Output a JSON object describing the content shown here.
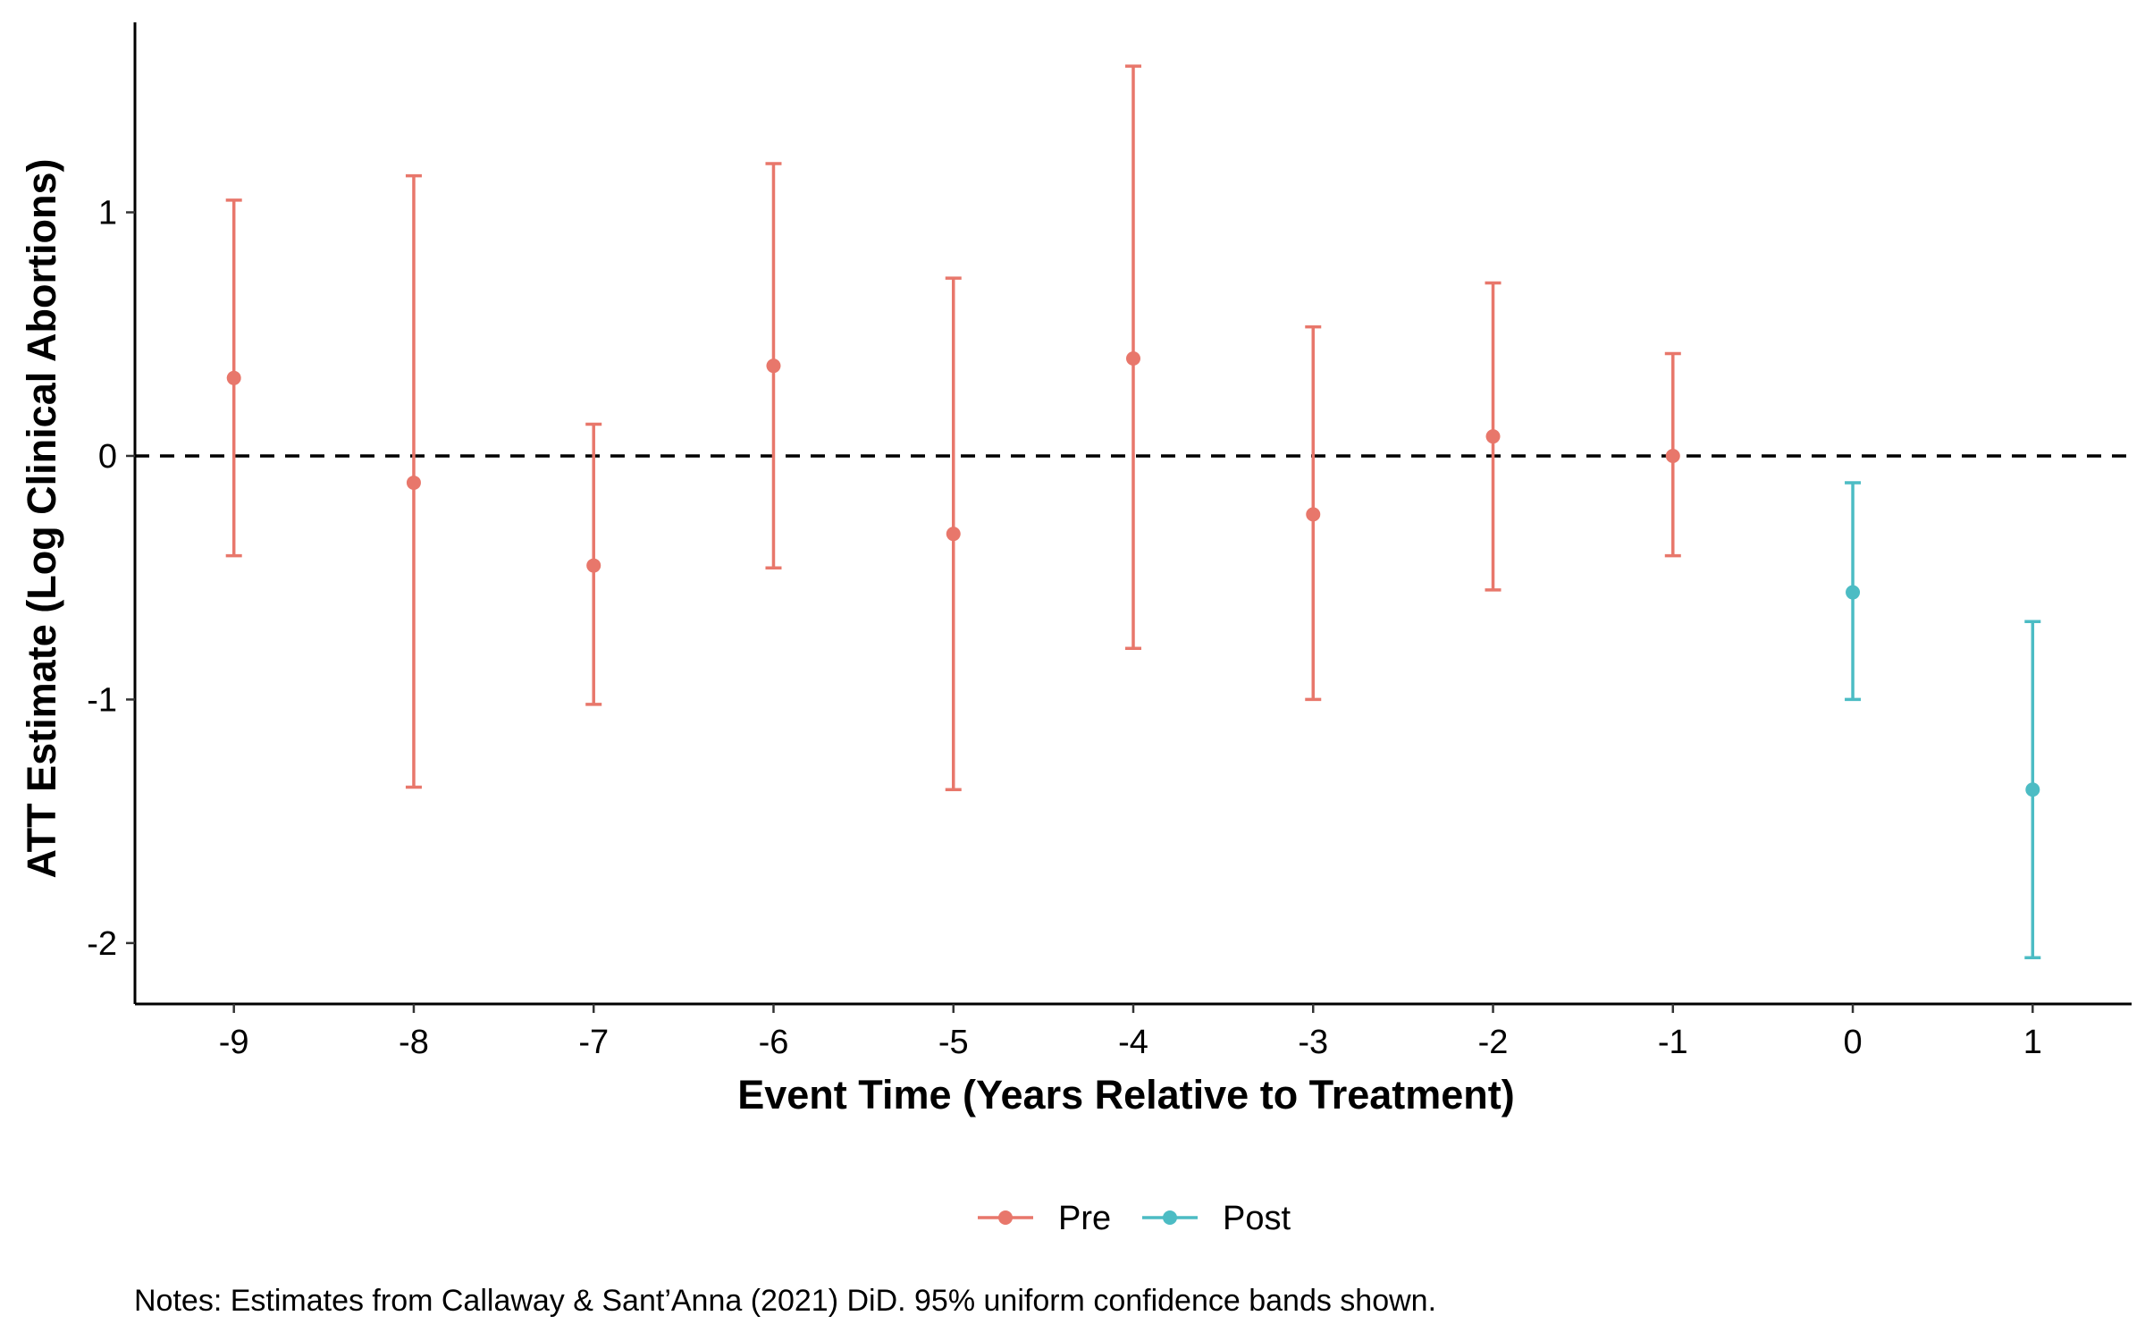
{
  "chart_data": {
    "type": "scatter",
    "xlabel": "Event Time (Years Relative to Treatment)",
    "ylabel": "ATT Estimate (Log Clinical Abortions)",
    "x_ticks": [
      -9,
      -8,
      -7,
      -6,
      -5,
      -4,
      -3,
      -2,
      -1,
      0,
      1
    ],
    "y_ticks": [
      -2,
      -1,
      0,
      1
    ],
    "xlim": [
      -9.55,
      1.55
    ],
    "ylim": [
      -2.25,
      1.78
    ],
    "grid": false,
    "reference_line": {
      "y": 0,
      "style": "dashed",
      "color": "#000000"
    },
    "legend_position": "bottom",
    "series": [
      {
        "name": "Pre",
        "color": "#E8776B",
        "points": [
          {
            "x": -9,
            "y": 0.32,
            "lower": -0.41,
            "upper": 1.05
          },
          {
            "x": -8,
            "y": -0.11,
            "lower": -1.36,
            "upper": 1.15
          },
          {
            "x": -7,
            "y": -0.45,
            "lower": -1.02,
            "upper": 0.13
          },
          {
            "x": -6,
            "y": 0.37,
            "lower": -0.46,
            "upper": 1.2
          },
          {
            "x": -5,
            "y": -0.32,
            "lower": -1.37,
            "upper": 0.73
          },
          {
            "x": -4,
            "y": 0.4,
            "lower": -0.79,
            "upper": 1.6
          },
          {
            "x": -3,
            "y": -0.24,
            "lower": -1.0,
            "upper": 0.53
          },
          {
            "x": -2,
            "y": 0.08,
            "lower": -0.55,
            "upper": 0.71
          },
          {
            "x": -1,
            "y": 0.0,
            "lower": -0.41,
            "upper": 0.42
          }
        ]
      },
      {
        "name": "Post",
        "color": "#4CBCC4",
        "points": [
          {
            "x": 0,
            "y": -0.56,
            "lower": -1.0,
            "upper": -0.11
          },
          {
            "x": 1,
            "y": -1.37,
            "lower": -2.06,
            "upper": -0.68
          }
        ]
      }
    ]
  },
  "note": "Notes: Estimates from Callaway & Sant’Anna (2021) DiD. 95% uniform confidence bands shown."
}
